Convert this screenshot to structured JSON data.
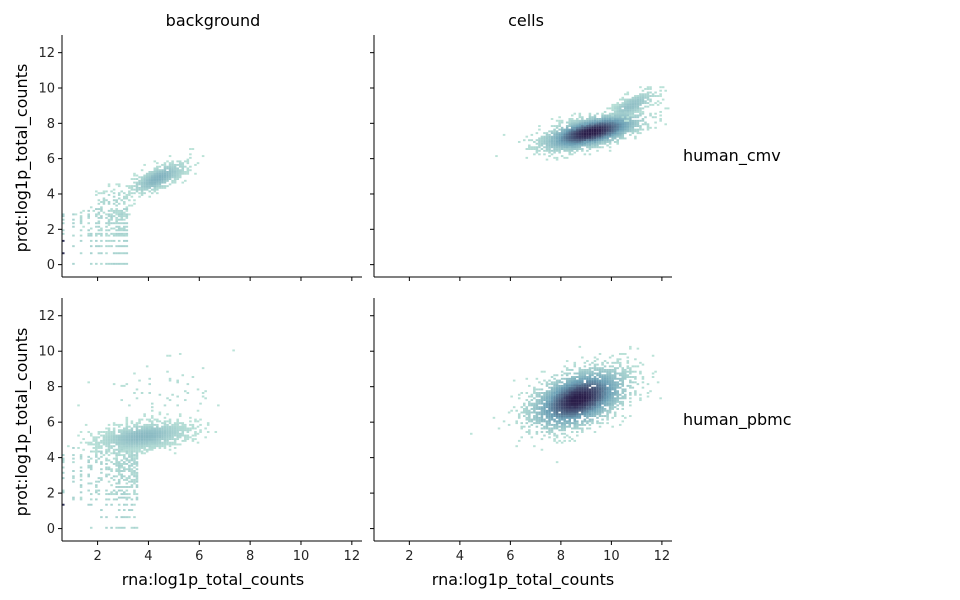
{
  "chart_data": {
    "type": "heatmap",
    "subtype": "faceted 2D histogram grid",
    "sharex": true,
    "sharey": true,
    "xlim": [
      0.6,
      12.4
    ],
    "ylim": [
      -0.7,
      13
    ],
    "xticks": [
      2,
      4,
      6,
      8,
      10,
      12
    ],
    "yticks": [
      0,
      2,
      4,
      6,
      8,
      10,
      12
    ],
    "xlabel": "rna:log1p_total_counts",
    "ylabel": "prot:log1p_total_counts",
    "col_titles": [
      "background",
      "cells"
    ],
    "row_titles": [
      "human_cmv",
      "human_pbmc"
    ],
    "colormap": {
      "low": "#bfe6da",
      "mid": "#6a9fb5",
      "high": "#2a1e4a"
    },
    "panels": [
      {
        "row": "human_cmv",
        "col": "background",
        "clusters": [
          {
            "cx": 4.4,
            "cy": 4.9,
            "sx": 0.55,
            "sy": 0.45,
            "rho": 0.7,
            "n": 650,
            "peak": 0.35
          },
          {
            "cx": 2.6,
            "cy": 3.6,
            "sx": 0.5,
            "sy": 0.5,
            "rho": 0.5,
            "n": 90,
            "peak": 0.1
          }
        ],
        "discrete_levels": {
          "y_max": 3.2,
          "x_max": 3.2,
          "n": 300,
          "peak": 0.15
        }
      },
      {
        "row": "human_cmv",
        "col": "cells",
        "clusters": [
          {
            "cx": 9.2,
            "cy": 7.5,
            "sx": 0.95,
            "sy": 0.5,
            "rho": 0.6,
            "n": 2600,
            "peak": 1.0
          },
          {
            "cx": 10.8,
            "cy": 9.0,
            "sx": 0.5,
            "sy": 0.45,
            "rho": 0.75,
            "n": 420,
            "peak": 0.25
          }
        ]
      },
      {
        "row": "human_pbmc",
        "col": "background",
        "clusters": [
          {
            "cx": 3.8,
            "cy": 5.2,
            "sx": 0.9,
            "sy": 0.4,
            "rho": 0.4,
            "n": 1500,
            "peak": 0.3
          },
          {
            "cx": 4.5,
            "cy": 7.6,
            "sx": 1.3,
            "sy": 1.0,
            "rho": 0.2,
            "n": 60,
            "peak": 0.05
          }
        ],
        "discrete_levels": {
          "y_max": 4.6,
          "x_max": 3.6,
          "n": 400,
          "peak": 0.15
        }
      },
      {
        "row": "human_pbmc",
        "col": "cells",
        "clusters": [
          {
            "cx": 8.7,
            "cy": 7.3,
            "sx": 0.95,
            "sy": 0.85,
            "rho": 0.45,
            "n": 3000,
            "peak": 1.0
          }
        ]
      }
    ]
  }
}
